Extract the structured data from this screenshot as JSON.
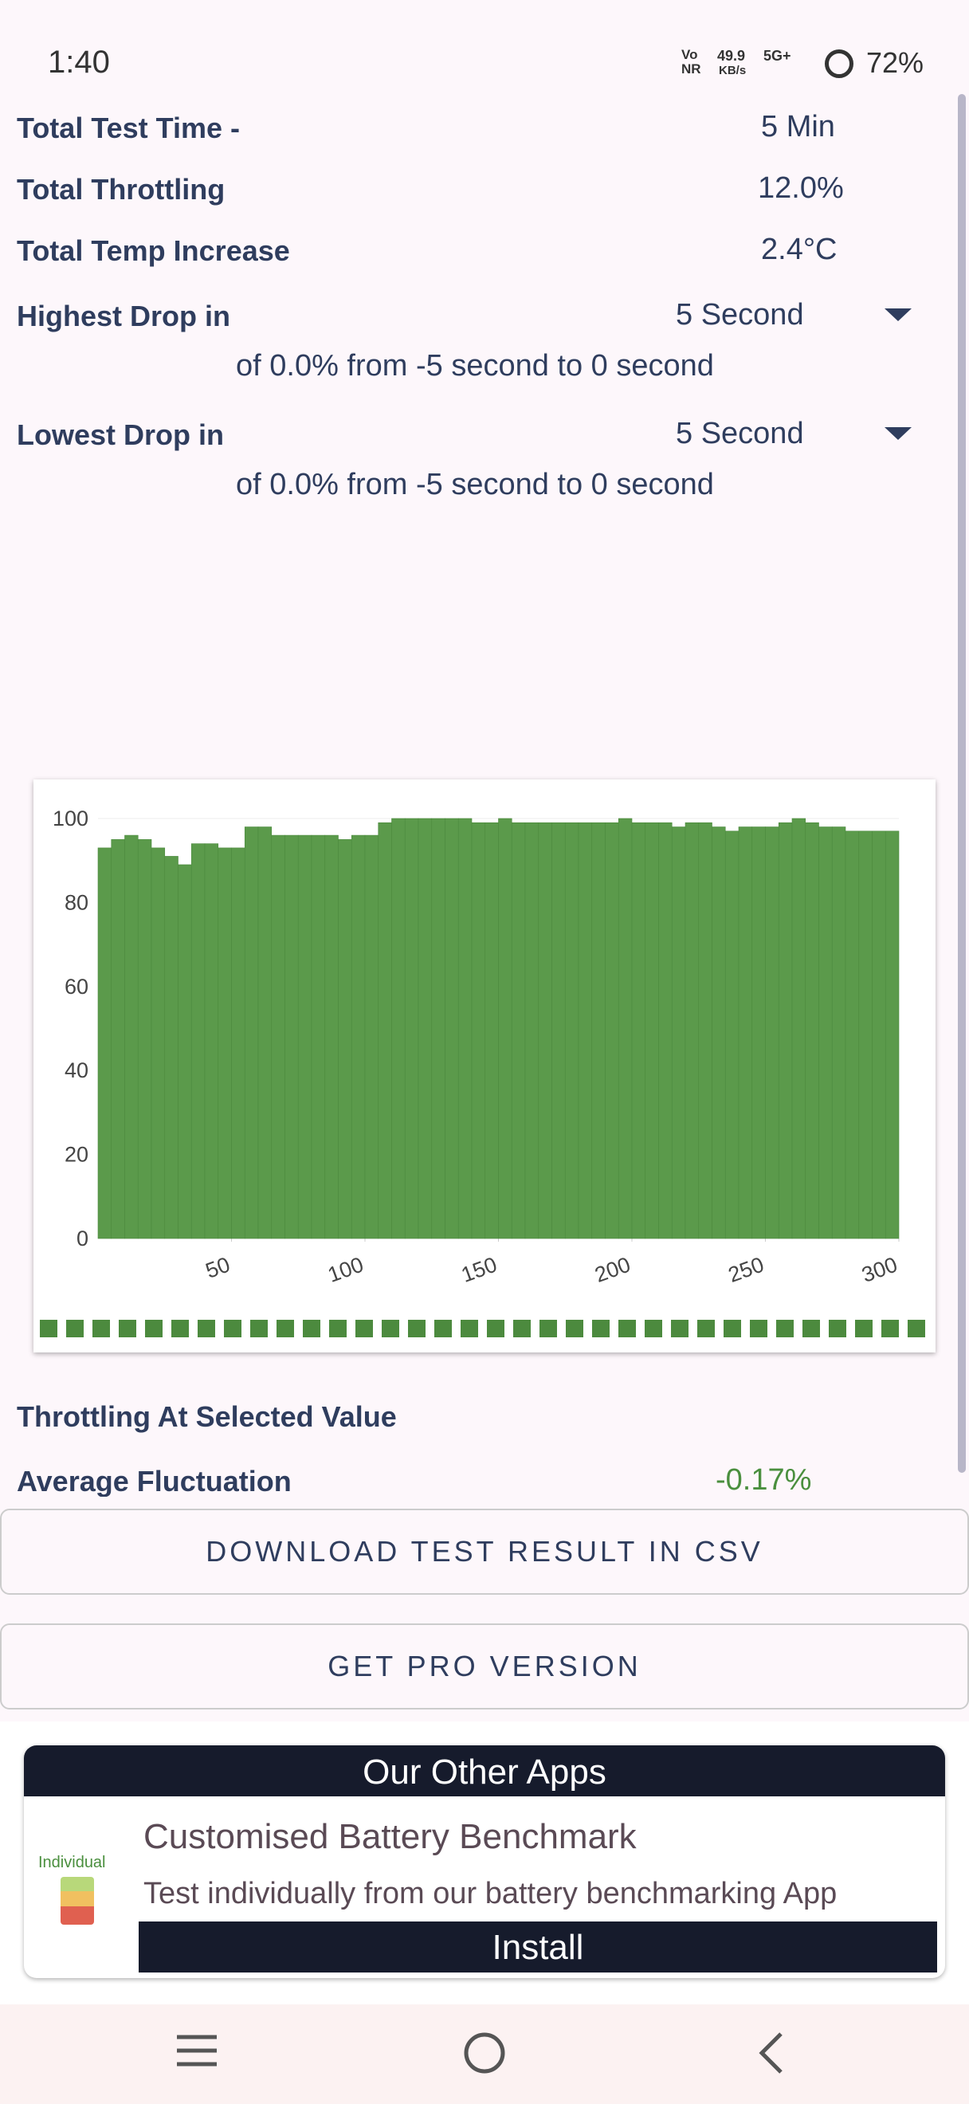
{
  "status_bar": {
    "time": "1:40",
    "network": "Vo NR",
    "speed": "49.9",
    "speed_unit": "KB/s",
    "signal": "5G+",
    "battery": "72%"
  },
  "stats": [
    {
      "label": "Total Test Time -",
      "value": "5 Min"
    },
    {
      "label": "Total Throttling",
      "value": "12.0%"
    },
    {
      "label": "Total Temp Increase",
      "value": "2.4°C"
    }
  ],
  "drops": [
    {
      "label": "Highest Drop in",
      "interval": "5 Second",
      "detail": "of 0.0% from -5 second to  0 second"
    },
    {
      "label": "Lowest Drop in",
      "interval": "5 Second",
      "detail": "of 0.0% from -5 second to  0 second"
    }
  ],
  "chart_data": {
    "type": "bar",
    "color": "#5b9a4b",
    "x": [
      5,
      10,
      15,
      20,
      25,
      30,
      35,
      40,
      45,
      50,
      55,
      60,
      65,
      70,
      75,
      80,
      85,
      90,
      95,
      100,
      105,
      110,
      115,
      120,
      125,
      130,
      135,
      140,
      145,
      150,
      155,
      160,
      165,
      170,
      175,
      180,
      185,
      190,
      195,
      200,
      205,
      210,
      215,
      220,
      225,
      230,
      235,
      240,
      245,
      250,
      255,
      260,
      265,
      270,
      275,
      280,
      285,
      290,
      295,
      300
    ],
    "values": [
      93,
      95,
      96,
      95,
      93,
      91,
      89,
      94,
      94,
      93,
      93,
      98,
      98,
      96,
      96,
      96,
      96,
      96,
      95,
      96,
      96,
      99,
      100,
      100,
      100,
      100,
      100,
      100,
      99,
      99,
      100,
      99,
      99,
      99,
      99,
      99,
      99,
      99,
      99,
      100,
      99,
      99,
      99,
      98,
      99,
      99,
      98,
      97,
      98,
      98,
      98,
      99,
      100,
      99,
      98,
      98,
      97,
      97,
      97,
      97
    ],
    "xlim": [
      0,
      300
    ],
    "xticks": [
      50,
      100,
      150,
      200,
      250,
      300
    ],
    "ylim": [
      0,
      100
    ],
    "yticks": [
      0,
      20,
      40,
      60,
      80,
      100
    ]
  },
  "selected_title": "Throttling At Selected Value",
  "fluctuation": {
    "label": "Average Fluctuation",
    "value": "-0.17%"
  },
  "buttons": [
    "DOWNLOAD TEST RESULT IN CSV",
    "GET PRO VERSION"
  ],
  "ad": {
    "header": "Our Other Apps",
    "icon_label": "Individual",
    "title": "Customised Battery Benchmark",
    "description": "Test individually from our battery benchmarking App",
    "action": "Install"
  }
}
